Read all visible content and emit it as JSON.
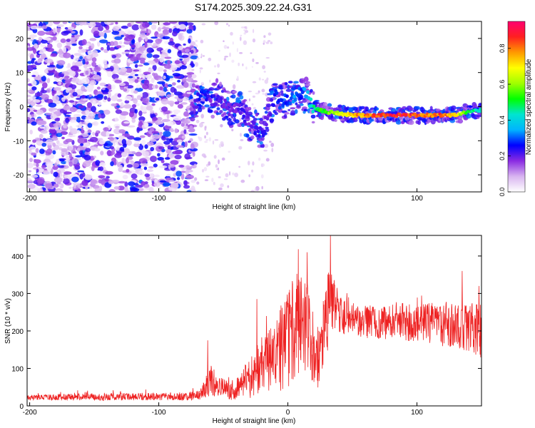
{
  "title": "S174.2025.309.22.24.G31",
  "chart_data": [
    {
      "type": "heatmap",
      "name": "spectrogram",
      "xlabel": "Height of straight line (km)",
      "ylabel": "Frequency (Hz)",
      "xlim": [
        -202,
        150
      ],
      "ylim": [
        -25,
        25
      ],
      "xticks": [
        -200,
        -100,
        0,
        100
      ],
      "yticks": [
        -20,
        -10,
        0,
        10,
        20
      ],
      "colorbar": {
        "label": "Normalized spectral amplitude",
        "range": [
          0,
          0.95
        ],
        "ticks": [
          0.0,
          0.2,
          0.4,
          0.6,
          0.8
        ],
        "stops": [
          "#ffffff",
          "#d8b4f0",
          "#8a2be2",
          "#0000ff",
          "#00b4ff",
          "#00e5cf",
          "#00ff00",
          "#a0ff00",
          "#ffff00",
          "#ff9900",
          "#ff2020",
          "#ff0070"
        ]
      },
      "noise_region": {
        "x_range": [
          -202,
          -72
        ],
        "amplitude_range": [
          0.0,
          0.3
        ]
      },
      "ridge": {
        "description": "dominant Doppler frequency track",
        "x": [
          -75,
          -70,
          -65,
          -60,
          -55,
          -50,
          -45,
          -40,
          -35,
          -30,
          -25,
          -20,
          -15,
          -10,
          -5,
          0,
          5,
          10,
          15,
          20,
          25,
          30,
          40,
          50,
          60,
          70,
          80,
          90,
          100,
          110,
          120,
          130,
          140,
          150
        ],
        "y": [
          1,
          2,
          4,
          0,
          3,
          1,
          -1,
          0,
          -2,
          -5,
          -6,
          -8,
          -2,
          3,
          1,
          3,
          2,
          4,
          3,
          0,
          -1,
          -1.5,
          -2,
          -2.5,
          -2.5,
          -2.5,
          -2.5,
          -2.5,
          -2.5,
          -2.5,
          -2.5,
          -2.5,
          -1.5,
          -1
        ],
        "amplitude": [
          0.15,
          0.25,
          0.3,
          0.2,
          0.25,
          0.2,
          0.2,
          0.2,
          0.25,
          0.2,
          0.25,
          0.25,
          0.2,
          0.3,
          0.3,
          0.3,
          0.35,
          0.3,
          0.4,
          0.5,
          0.55,
          0.6,
          0.7,
          0.8,
          0.85,
          0.9,
          0.95,
          0.95,
          0.9,
          0.85,
          0.9,
          0.75,
          0.55,
          0.45
        ]
      }
    },
    {
      "type": "line",
      "name": "snr",
      "xlabel": "Height of straight line (km)",
      "ylabel": "SNR (10 * v/v)",
      "xlim": [
        -202,
        150
      ],
      "ylim": [
        0,
        455
      ],
      "xticks": [
        -200,
        -100,
        0,
        100
      ],
      "yticks": [
        0,
        100,
        200,
        300,
        400
      ],
      "color": "#ee2222",
      "series": [
        {
          "name": "SNR envelope",
          "x": [
            -202,
            -180,
            -160,
            -140,
            -120,
            -100,
            -80,
            -70,
            -65,
            -60,
            -55,
            -50,
            -45,
            -40,
            -35,
            -30,
            -25,
            -20,
            -15,
            -10,
            -5,
            0,
            5,
            10,
            15,
            20,
            25,
            30,
            35,
            40,
            50,
            60,
            70,
            80,
            90,
            100,
            110,
            120,
            130,
            140,
            150
          ],
          "y": [
            22,
            23,
            24,
            24,
            25,
            25,
            26,
            28,
            40,
            70,
            55,
            45,
            40,
            45,
            60,
            70,
            90,
            110,
            120,
            130,
            150,
            190,
            200,
            210,
            200,
            150,
            130,
            250,
            280,
            240,
            230,
            225,
            220,
            225,
            225,
            220,
            220,
            215,
            215,
            210,
            200
          ],
          "spread": [
            6,
            8,
            10,
            10,
            10,
            10,
            11,
            14,
            25,
            45,
            30,
            28,
            25,
            30,
            40,
            50,
            65,
            75,
            80,
            90,
            110,
            140,
            140,
            140,
            130,
            100,
            90,
            120,
            80,
            55,
            45,
            45,
            45,
            45,
            50,
            50,
            55,
            60,
            65,
            70,
            75
          ],
          "peaks": [
            {
              "x": -62,
              "y": 175
            },
            {
              "x": -24,
              "y": 285
            },
            {
              "x": 8,
              "y": 418
            },
            {
              "x": 15,
              "y": 410
            },
            {
              "x": 33,
              "y": 455
            },
            {
              "x": 38,
              "y": 315
            },
            {
              "x": 135,
              "y": 360
            },
            {
              "x": 148,
              "y": 320
            }
          ]
        }
      ]
    }
  ]
}
